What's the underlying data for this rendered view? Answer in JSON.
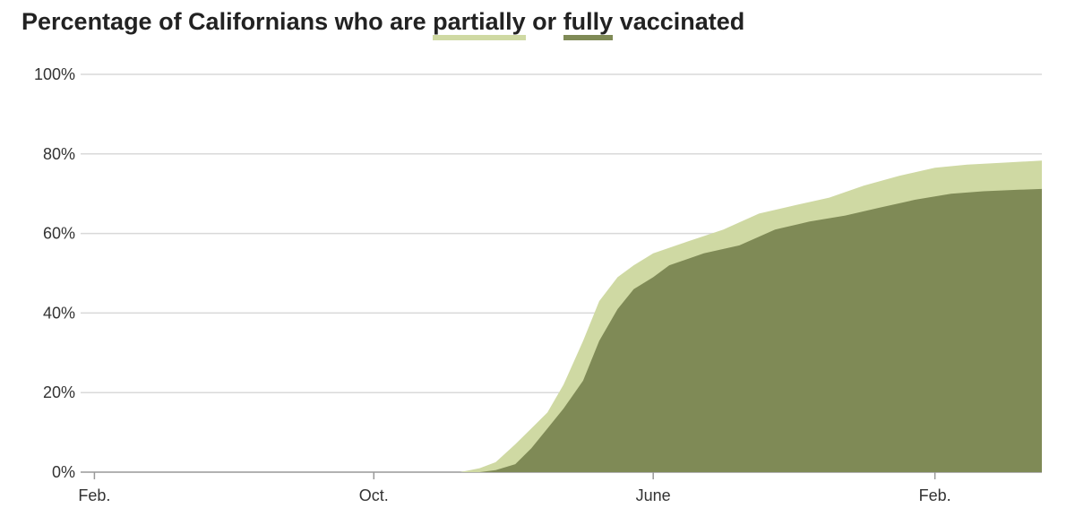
{
  "chart_data": {
    "type": "area",
    "title": {
      "prefix": "Percentage of Californians who are ",
      "partial_word": "partially",
      "middle": " or ",
      "full_word": "fully",
      "suffix": " vaccinated"
    },
    "xlabel": "",
    "ylabel": "",
    "ylim": [
      0,
      100
    ],
    "y_ticks": [
      "0%",
      "20%",
      "40%",
      "60%",
      "80%",
      "100%"
    ],
    "y_tick_values": [
      0,
      20,
      40,
      60,
      80,
      100
    ],
    "x_tick_labels": [
      "Feb.",
      "Oct.",
      "June",
      "Feb."
    ],
    "x_tick_dates": [
      "2020-02-01",
      "2020-10-01",
      "2021-06-01",
      "2022-02-01"
    ],
    "x_range": [
      "2020-01-20",
      "2022-05-05"
    ],
    "grid": true,
    "legend": "inline in title",
    "colors": {
      "partial": "#cfd9a3",
      "full": "#7f8a56",
      "grid": "#d9d9d9",
      "axis": "#999999"
    },
    "series": [
      {
        "name": "partially",
        "points": [
          [
            "2020-01-20",
            0
          ],
          [
            "2020-12-15",
            0
          ],
          [
            "2021-01-01",
            1
          ],
          [
            "2021-01-15",
            2.5
          ],
          [
            "2021-02-01",
            7
          ],
          [
            "2021-02-15",
            11
          ],
          [
            "2021-03-01",
            15
          ],
          [
            "2021-03-15",
            22
          ],
          [
            "2021-04-01",
            33
          ],
          [
            "2021-04-15",
            43
          ],
          [
            "2021-05-01",
            49
          ],
          [
            "2021-05-15",
            52
          ],
          [
            "2021-06-01",
            55
          ],
          [
            "2021-07-01",
            58
          ],
          [
            "2021-08-01",
            61
          ],
          [
            "2021-09-01",
            65
          ],
          [
            "2021-10-01",
            67
          ],
          [
            "2021-11-01",
            69
          ],
          [
            "2021-12-01",
            72
          ],
          [
            "2022-01-01",
            74.5
          ],
          [
            "2022-02-01",
            76.5
          ],
          [
            "2022-03-01",
            77.3
          ],
          [
            "2022-04-01",
            77.8
          ],
          [
            "2022-05-05",
            78.3
          ]
        ]
      },
      {
        "name": "fully",
        "points": [
          [
            "2020-01-20",
            0
          ],
          [
            "2021-01-01",
            0
          ],
          [
            "2021-01-15",
            0.5
          ],
          [
            "2021-02-01",
            2
          ],
          [
            "2021-02-15",
            6
          ],
          [
            "2021-03-01",
            11
          ],
          [
            "2021-03-15",
            16
          ],
          [
            "2021-04-01",
            23
          ],
          [
            "2021-04-15",
            33
          ],
          [
            "2021-05-01",
            41
          ],
          [
            "2021-05-15",
            46
          ],
          [
            "2021-06-01",
            49
          ],
          [
            "2021-06-15",
            52
          ],
          [
            "2021-07-15",
            55
          ],
          [
            "2021-08-15",
            57
          ],
          [
            "2021-09-15",
            61
          ],
          [
            "2021-10-15",
            63
          ],
          [
            "2021-11-15",
            64.5
          ],
          [
            "2021-12-15",
            66.5
          ],
          [
            "2022-01-15",
            68.5
          ],
          [
            "2022-02-15",
            70
          ],
          [
            "2022-03-15",
            70.6
          ],
          [
            "2022-04-15",
            71
          ],
          [
            "2022-05-05",
            71.2
          ]
        ]
      }
    ]
  }
}
